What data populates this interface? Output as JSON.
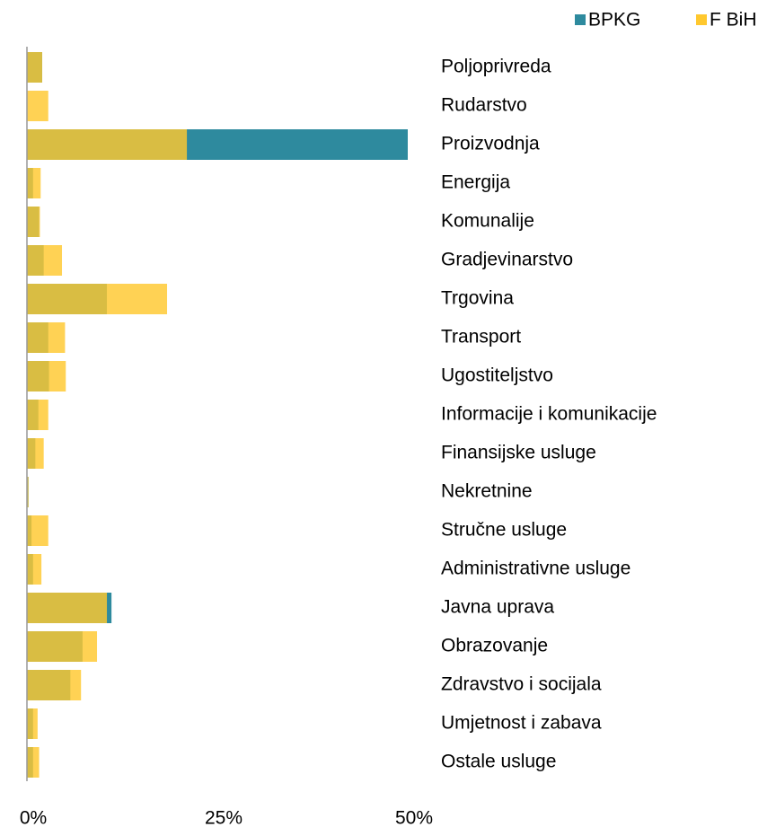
{
  "chart_data": {
    "type": "bar",
    "orientation": "horizontal",
    "overlap": true,
    "categories": [
      "Poljoprivreda",
      "Rudarstvo",
      "Proizvodnja",
      "Energija",
      "Komunalije",
      "Gradjevinarstvo",
      "Trgovina",
      "Transport",
      "Ugostiteljstvo",
      "Informacije i komunikacije",
      "Finansijske usluge",
      "Nekretnine",
      "Stručne usluge",
      "Administrativne usluge",
      "Javna uprava",
      "Obrazovanje",
      "Zdravstvo i socijala",
      "Umjetnost i zabava",
      "Ostale usluge"
    ],
    "series": [
      {
        "name": "BPKG",
        "color": "#2e8a9e",
        "values": [
          2,
          0,
          50,
          0.8,
          1.6,
          2.2,
          10.5,
          2.8,
          2.9,
          1.5,
          1.1,
          0.2,
          0.6,
          0.8,
          11.1,
          7.3,
          5.7,
          0.8,
          0.8
        ]
      },
      {
        "name": "F BiH",
        "color": "#ffc82e",
        "values": [
          2,
          2.8,
          21,
          1.8,
          1.7,
          4.6,
          18.4,
          5,
          5.1,
          2.8,
          2.2,
          0.2,
          2.8,
          1.9,
          10.5,
          9.2,
          7.1,
          1.4,
          1.6
        ]
      }
    ],
    "xlim": [
      0,
      50
    ],
    "xticks": [
      {
        "value": 0,
        "label": "0%"
      },
      {
        "value": 25,
        "label": "25%"
      },
      {
        "value": 50,
        "label": "50%"
      }
    ],
    "legend": "top-right"
  }
}
